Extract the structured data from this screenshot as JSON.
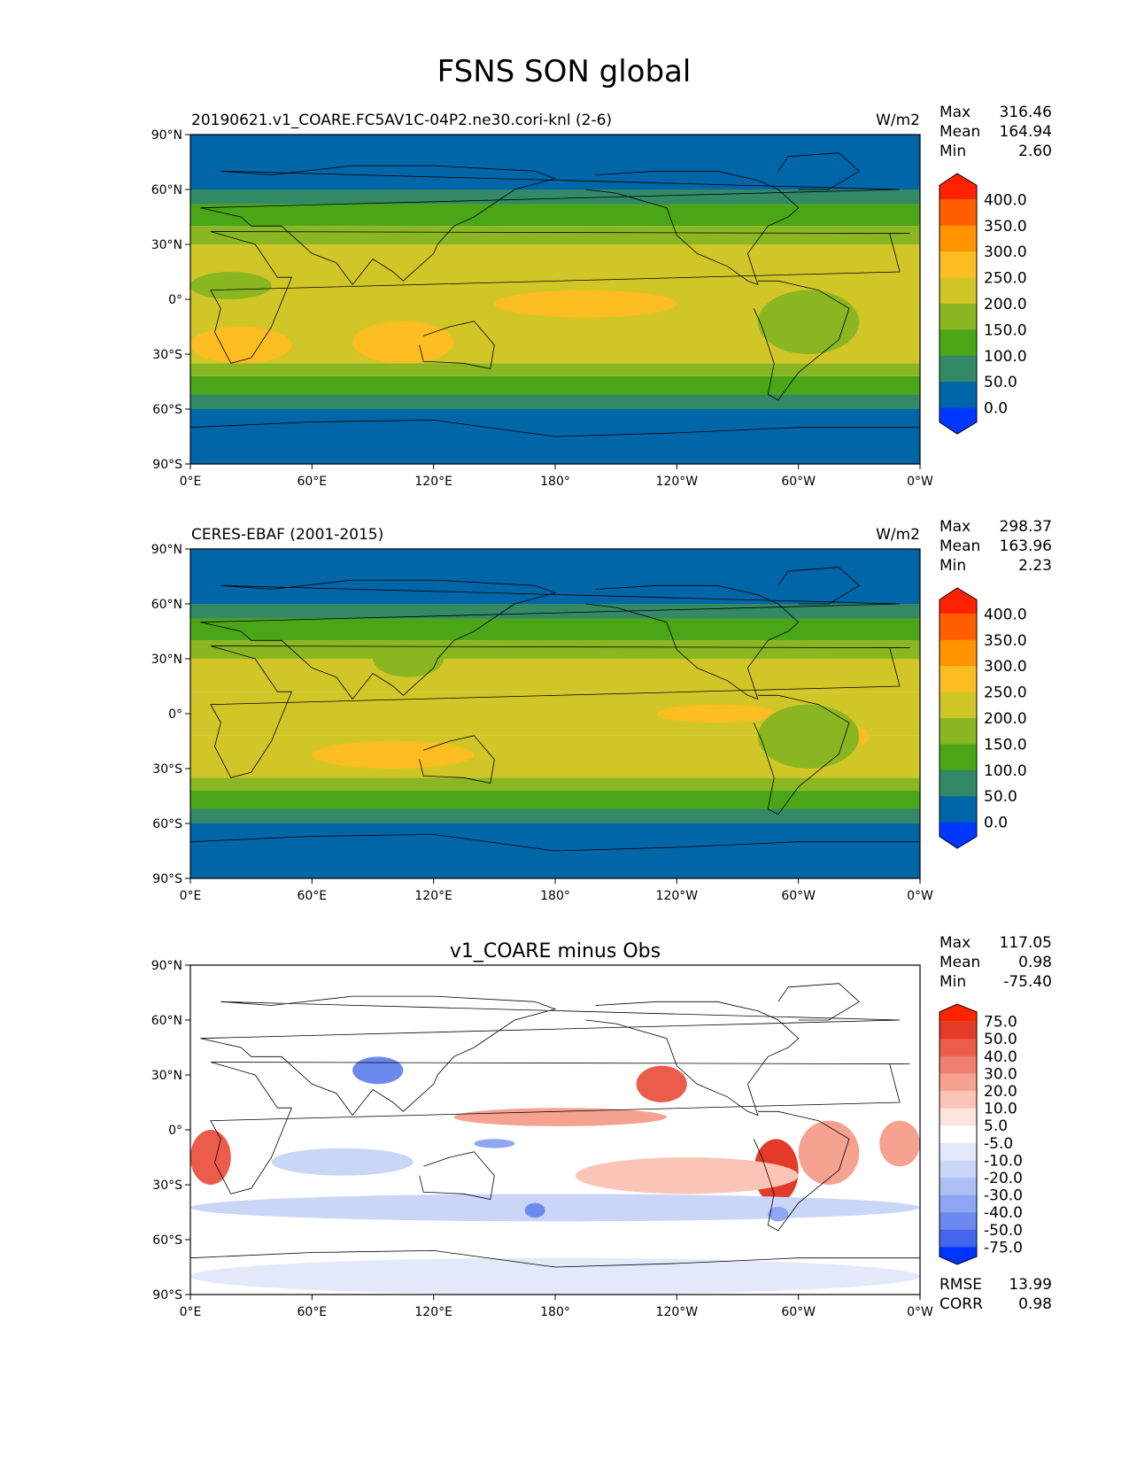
{
  "figure": {
    "title": "FSNS SON global"
  },
  "chart_data": [
    {
      "type": "heatmap",
      "panel": "test",
      "title": "20190621.v1_COARE.FC5AV1C-04P2.ne30.cori-knl (2-6)",
      "units": "W/m2",
      "stats": [
        {
          "label": "Max",
          "value": "316.46"
        },
        {
          "label": "Mean",
          "value": "164.94"
        },
        {
          "label": "Min",
          "value": "2.60"
        }
      ],
      "x_ticks": [
        "0°E",
        "60°E",
        "120°E",
        "180°",
        "120°W",
        "60°W",
        "0°W"
      ],
      "y_ticks": [
        "90°N",
        "60°N",
        "30°N",
        "0°",
        "30°S",
        "60°S",
        "90°S"
      ],
      "xlim": [
        0,
        360
      ],
      "ylim": [
        -90,
        90
      ],
      "colorbar": {
        "labels": [
          "400.0",
          "350.0",
          "300.0",
          "250.0",
          "200.0",
          "150.0",
          "100.0",
          "50.0",
          "0.0"
        ],
        "colors": [
          "#ff2200",
          "#ff5e00",
          "#ff9400",
          "#fbbd22",
          "#d1c627",
          "#8ab721",
          "#4aa616",
          "#338866",
          "#0066a8",
          "#0037ff"
        ]
      },
      "zonal_profile": [
        {
          "lat": [
            60,
            90
          ],
          "value": 20
        },
        {
          "lat": [
            52,
            60
          ],
          "value": 70
        },
        {
          "lat": [
            40,
            52
          ],
          "value": 120
        },
        {
          "lat": [
            30,
            40
          ],
          "value": 170
        },
        {
          "lat": [
            15,
            30
          ],
          "value": 220
        },
        {
          "lat": [
            -15,
            15
          ],
          "value": 230
        },
        {
          "lat": [
            -35,
            -15
          ],
          "value": 235
        },
        {
          "lat": [
            -42,
            -35
          ],
          "value": 170
        },
        {
          "lat": [
            -52,
            -42
          ],
          "value": 130
        },
        {
          "lat": [
            -60,
            -52
          ],
          "value": 80
        },
        {
          "lat": [
            -90,
            -60
          ],
          "value": 20
        }
      ],
      "patches": [
        {
          "lon": [
            150,
            240
          ],
          "lat": [
            -10,
            5
          ],
          "value": 260
        },
        {
          "lon": [
            80,
            130
          ],
          "lat": [
            -35,
            -12
          ],
          "value": 260
        },
        {
          "lon": [
            0,
            50
          ],
          "lat": [
            -35,
            -15
          ],
          "value": 260
        },
        {
          "lon": [
            280,
            330
          ],
          "lat": [
            -30,
            5
          ],
          "value": 170
        },
        {
          "lon": [
            0,
            40
          ],
          "lat": [
            0,
            15
          ],
          "value": 170
        }
      ]
    },
    {
      "type": "heatmap",
      "panel": "reference",
      "title": "CERES-EBAF (2001-2015)",
      "units": "W/m2",
      "stats": [
        {
          "label": "Max",
          "value": "298.37"
        },
        {
          "label": "Mean",
          "value": "163.96"
        },
        {
          "label": "Min",
          "value": "2.23"
        }
      ],
      "x_ticks": [
        "0°E",
        "60°E",
        "120°E",
        "180°",
        "120°W",
        "60°W",
        "0°W"
      ],
      "y_ticks": [
        "90°N",
        "60°N",
        "30°N",
        "0°",
        "30°S",
        "60°S",
        "90°S"
      ],
      "xlim": [
        0,
        360
      ],
      "ylim": [
        -90,
        90
      ],
      "colorbar": {
        "labels": [
          "400.0",
          "350.0",
          "300.0",
          "250.0",
          "200.0",
          "150.0",
          "100.0",
          "50.0",
          "0.0"
        ],
        "colors": [
          "#ff2200",
          "#ff5e00",
          "#ff9400",
          "#fbbd22",
          "#d1c627",
          "#8ab721",
          "#4aa616",
          "#338866",
          "#0066a8",
          "#0037ff"
        ]
      },
      "zonal_profile": [
        {
          "lat": [
            60,
            90
          ],
          "value": 20
        },
        {
          "lat": [
            52,
            60
          ],
          "value": 70
        },
        {
          "lat": [
            40,
            52
          ],
          "value": 120
        },
        {
          "lat": [
            30,
            40
          ],
          "value": 170
        },
        {
          "lat": [
            12,
            30
          ],
          "value": 220
        },
        {
          "lat": [
            -12,
            12
          ],
          "value": 215
        },
        {
          "lat": [
            -35,
            -12
          ],
          "value": 230
        },
        {
          "lat": [
            -42,
            -35
          ],
          "value": 170
        },
        {
          "lat": [
            -52,
            -42
          ],
          "value": 130
        },
        {
          "lat": [
            -60,
            -52
          ],
          "value": 80
        },
        {
          "lat": [
            -90,
            -60
          ],
          "value": 20
        }
      ],
      "patches": [
        {
          "lon": [
            230,
            290
          ],
          "lat": [
            -5,
            5
          ],
          "value": 260
        },
        {
          "lon": [
            60,
            140
          ],
          "lat": [
            -30,
            -15
          ],
          "value": 260
        },
        {
          "lon": [
            300,
            335
          ],
          "lat": [
            -20,
            -5
          ],
          "value": 260
        },
        {
          "lon": [
            280,
            330
          ],
          "lat": [
            -30,
            5
          ],
          "value": 170
        },
        {
          "lon": [
            90,
            125
          ],
          "lat": [
            20,
            40
          ],
          "value": 170
        }
      ]
    },
    {
      "type": "heatmap",
      "panel": "difference",
      "title": "v1_COARE minus Obs",
      "units": "",
      "stats": [
        {
          "label": "Max",
          "value": "117.05"
        },
        {
          "label": "Mean",
          "value": "0.98"
        },
        {
          "label": "Min",
          "value": "-75.40"
        }
      ],
      "metrics": [
        {
          "label": "RMSE",
          "value": "13.99"
        },
        {
          "label": "CORR",
          "value": "0.98"
        }
      ],
      "x_ticks": [
        "0°E",
        "60°E",
        "120°E",
        "180°",
        "120°W",
        "60°W",
        "0°W"
      ],
      "y_ticks": [
        "90°N",
        "60°N",
        "30°N",
        "0°",
        "30°S",
        "60°S",
        "90°S"
      ],
      "xlim": [
        0,
        360
      ],
      "ylim": [
        -90,
        90
      ],
      "colorbar": {
        "labels": [
          "75.0",
          "50.0",
          "40.0",
          "30.0",
          "20.0",
          "10.0",
          "5.0",
          "-5.0",
          "-10.0",
          "-20.0",
          "-30.0",
          "-40.0",
          "-50.0",
          "-75.0"
        ],
        "colors": [
          "#ff2400",
          "#e43a2a",
          "#ec5c4a",
          "#f17f6e",
          "#f6a291",
          "#fac5b6",
          "#fde4dc",
          "#ffffff",
          "#e3e9fb",
          "#cad6f8",
          "#aebff6",
          "#8ea6f3",
          "#6c89ef",
          "#4466ec",
          "#0033ff"
        ]
      },
      "zonal_profile": [
        {
          "lat": [
            -90,
            90
          ],
          "value": 0
        }
      ],
      "patches": [
        {
          "lon": [
            0,
            20
          ],
          "lat": [
            -30,
            0
          ],
          "value": 45
        },
        {
          "lon": [
            278,
            300
          ],
          "lat": [
            -40,
            -5
          ],
          "value": 60
        },
        {
          "lon": [
            300,
            330
          ],
          "lat": [
            -30,
            5
          ],
          "value": 25
        },
        {
          "lon": [
            130,
            235
          ],
          "lat": [
            2,
            12
          ],
          "value": 25
        },
        {
          "lon": [
            220,
            245
          ],
          "lat": [
            15,
            35
          ],
          "value": 45
        },
        {
          "lon": [
            340,
            360
          ],
          "lat": [
            -20,
            5
          ],
          "value": 25
        },
        {
          "lon": [
            80,
            105
          ],
          "lat": [
            25,
            40
          ],
          "value": -45
        },
        {
          "lon": [
            140,
            160
          ],
          "lat": [
            -10,
            -5
          ],
          "value": -35
        },
        {
          "lon": [
            40,
            110
          ],
          "lat": [
            -25,
            -10
          ],
          "value": -15
        },
        {
          "lon": [
            0,
            360
          ],
          "lat": [
            -50,
            -35
          ],
          "value": -12
        },
        {
          "lon": [
            190,
            300
          ],
          "lat": [
            -35,
            -15
          ],
          "value": 12
        },
        {
          "lon": [
            165,
            175
          ],
          "lat": [
            -48,
            -40
          ],
          "value": -50
        },
        {
          "lon": [
            285,
            295
          ],
          "lat": [
            -50,
            -42
          ],
          "value": -35
        },
        {
          "lon": [
            0,
            360
          ],
          "lat": [
            -90,
            -70
          ],
          "value": -8
        }
      ]
    }
  ]
}
